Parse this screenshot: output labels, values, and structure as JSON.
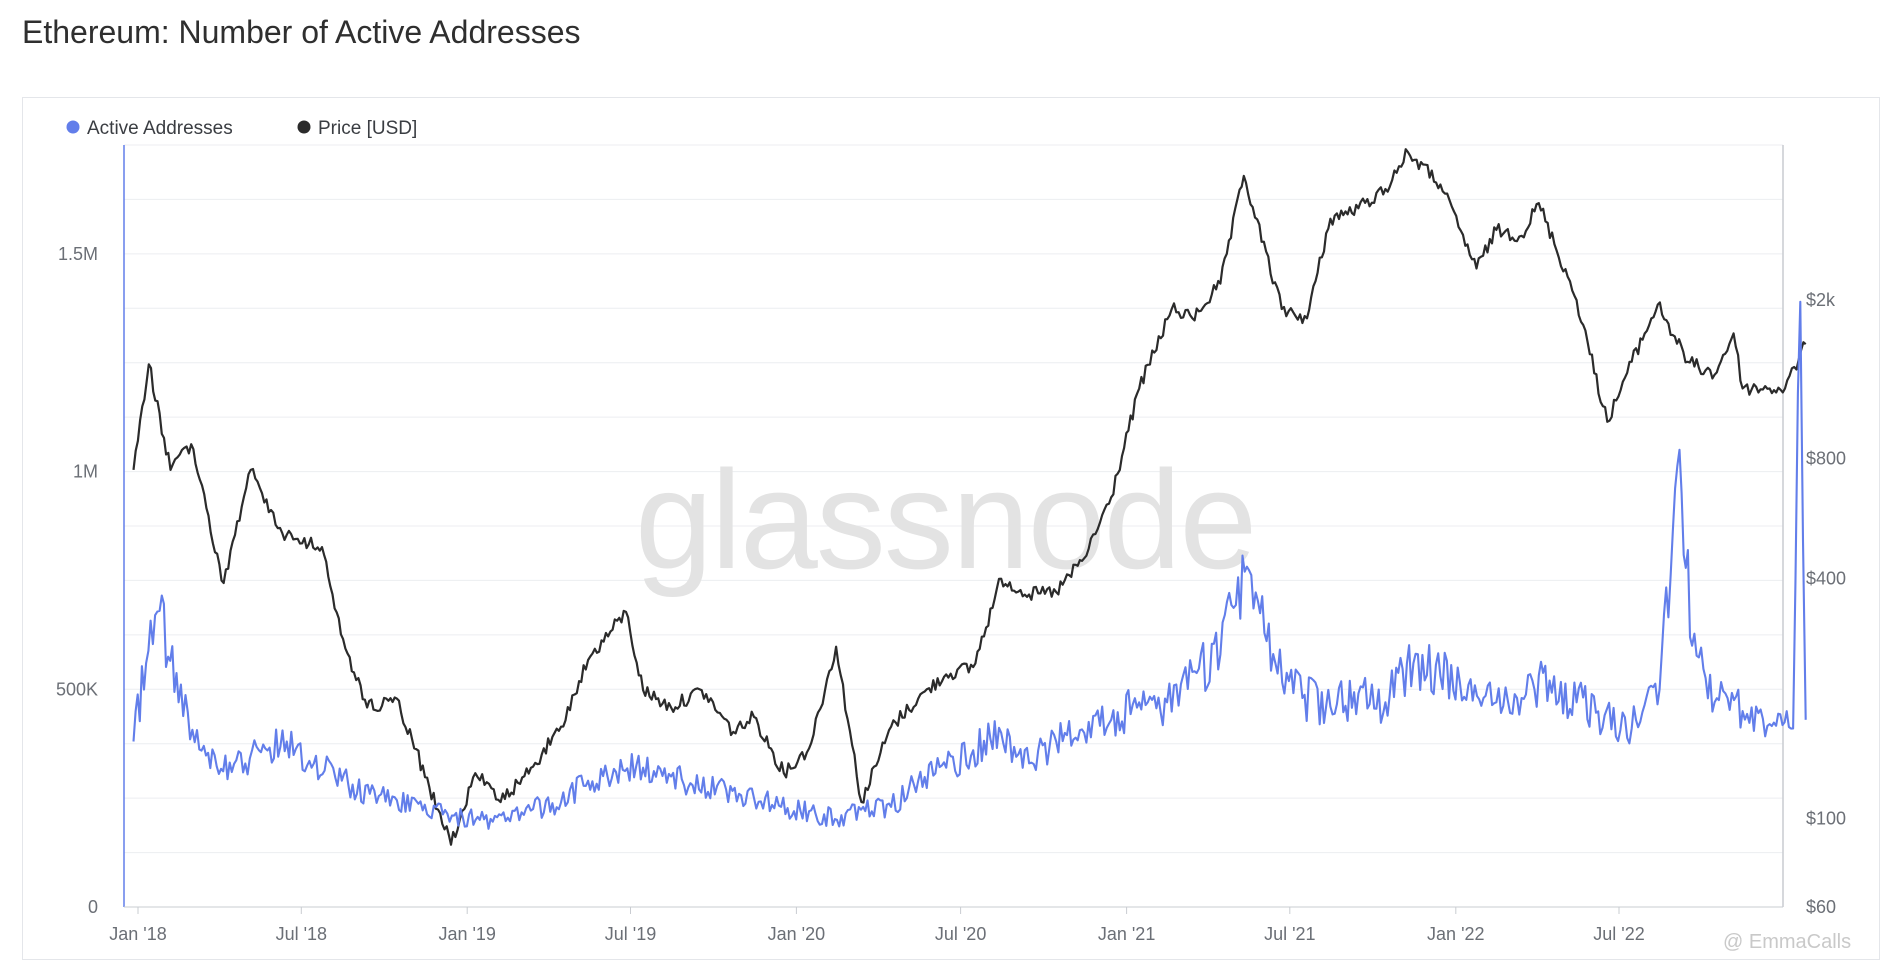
{
  "title": "Ethereum: Number of Active Addresses",
  "watermark": "glassnode",
  "credit": "@ EmmaCalls",
  "colors": {
    "active": "#627eea",
    "price": "#2b2b2b",
    "grid": "#eceef1",
    "axis": "#c9ccd1"
  },
  "chart_data": {
    "type": "line",
    "title": "Ethereum: Number of Active Addresses",
    "grid": true,
    "legend_position": "top-left",
    "x_ticks": [
      "Jan '18",
      "Jul '18",
      "Jan '19",
      "Jul '19",
      "Jan '20",
      "Jul '20",
      "Jan '21",
      "Jul '21",
      "Jan '22",
      "Jul '22"
    ],
    "y_left": {
      "ticks": [
        "0",
        "500K",
        "1M",
        "1.5M"
      ],
      "range": [
        0,
        1750000
      ]
    },
    "y_right": {
      "scale": "log",
      "ticks": [
        "$60",
        "$100",
        "$400",
        "$800",
        "$2k"
      ],
      "range": [
        60,
        4900
      ]
    },
    "series": [
      {
        "name": "Active Addresses",
        "axis": "left",
        "color": "#627eea",
        "x": [
          "2017-12-27",
          "2018-01-10",
          "2018-01-25",
          "2018-02-15",
          "2018-03-15",
          "2018-04-15",
          "2018-05-15",
          "2018-06-15",
          "2018-07-15",
          "2018-08-15",
          "2018-09-15",
          "2018-10-15",
          "2018-11-15",
          "2018-12-15",
          "2019-01-15",
          "2019-02-15",
          "2019-03-15",
          "2019-04-15",
          "2019-05-15",
          "2019-06-15",
          "2019-07-15",
          "2019-08-15",
          "2019-09-15",
          "2019-10-15",
          "2019-11-15",
          "2019-12-15",
          "2020-01-15",
          "2020-02-15",
          "2020-03-15",
          "2020-04-15",
          "2020-05-15",
          "2020-06-15",
          "2020-07-15",
          "2020-08-15",
          "2020-09-15",
          "2020-10-15",
          "2020-11-15",
          "2020-12-15",
          "2021-01-15",
          "2021-02-15",
          "2021-03-15",
          "2021-04-15",
          "2021-05-12",
          "2021-06-15",
          "2021-07-15",
          "2021-08-15",
          "2021-09-15",
          "2021-10-15",
          "2021-11-15",
          "2021-12-15",
          "2022-01-15",
          "2022-02-15",
          "2022-03-15",
          "2022-04-15",
          "2022-05-15",
          "2022-06-15",
          "2022-07-15",
          "2022-08-15",
          "2022-09-06",
          "2022-09-20",
          "2022-10-15",
          "2022-11-15",
          "2022-12-15",
          "2023-01-10",
          "2023-01-18",
          "2023-01-24"
        ],
        "values": [
          380000,
          560000,
          680000,
          470000,
          370000,
          310000,
          360000,
          380000,
          330000,
          290000,
          260000,
          245000,
          235000,
          210000,
          200000,
          205000,
          225000,
          240000,
          290000,
          310000,
          320000,
          300000,
          270000,
          270000,
          250000,
          230000,
          220000,
          200000,
          230000,
          230000,
          290000,
          320000,
          360000,
          400000,
          330000,
          380000,
          400000,
          430000,
          470000,
          470000,
          540000,
          580000,
          770000,
          560000,
          480000,
          460000,
          490000,
          470000,
          560000,
          530000,
          510000,
          470000,
          480000,
          520000,
          470000,
          440000,
          410000,
          500000,
          1050000,
          600000,
          470000,
          450000,
          420000,
          410000,
          1390000,
          430000
        ]
      },
      {
        "name": "Price [USD]",
        "axis": "right",
        "color": "#2b2b2b",
        "x": [
          "2017-12-27",
          "2018-01-13",
          "2018-02-06",
          "2018-03-01",
          "2018-04-06",
          "2018-05-06",
          "2018-06-10",
          "2018-07-24",
          "2018-08-14",
          "2018-09-12",
          "2018-10-15",
          "2018-11-20",
          "2018-12-14",
          "2019-01-10",
          "2019-02-07",
          "2019-03-15",
          "2019-04-15",
          "2019-05-15",
          "2019-06-26",
          "2019-07-15",
          "2019-08-15",
          "2019-09-18",
          "2019-10-23",
          "2019-11-15",
          "2019-12-18",
          "2020-01-15",
          "2020-02-14",
          "2020-03-13",
          "2020-04-15",
          "2020-05-15",
          "2020-06-15",
          "2020-07-15",
          "2020-08-15",
          "2020-09-15",
          "2020-10-15",
          "2020-11-15",
          "2020-12-15",
          "2021-01-15",
          "2021-02-20",
          "2021-03-15",
          "2021-04-15",
          "2021-05-11",
          "2021-06-22",
          "2021-07-20",
          "2021-08-15",
          "2021-09-15",
          "2021-10-15",
          "2021-11-09",
          "2021-12-15",
          "2022-01-24",
          "2022-02-15",
          "2022-03-15",
          "2022-04-03",
          "2022-05-15",
          "2022-06-18",
          "2022-07-15",
          "2022-08-13",
          "2022-09-15",
          "2022-10-15",
          "2022-11-05",
          "2022-11-15",
          "2022-12-15",
          "2023-01-01",
          "2023-01-24"
        ],
        "values": [
          750,
          1380,
          750,
          870,
          390,
          750,
          520,
          480,
          290,
          190,
          200,
          120,
          86,
          130,
          110,
          135,
          170,
          250,
          330,
          210,
          190,
          210,
          165,
          180,
          130,
          150,
          270,
          110,
          170,
          200,
          230,
          240,
          400,
          365,
          370,
          450,
          640,
          1200,
          1900,
          1800,
          2200,
          4100,
          1900,
          1800,
          3200,
          3400,
          3800,
          4700,
          3900,
          2400,
          3000,
          2900,
          3500,
          2000,
          990,
          1400,
          1950,
          1400,
          1300,
          1650,
          1200,
          1200,
          1200,
          1550
        ]
      }
    ]
  }
}
